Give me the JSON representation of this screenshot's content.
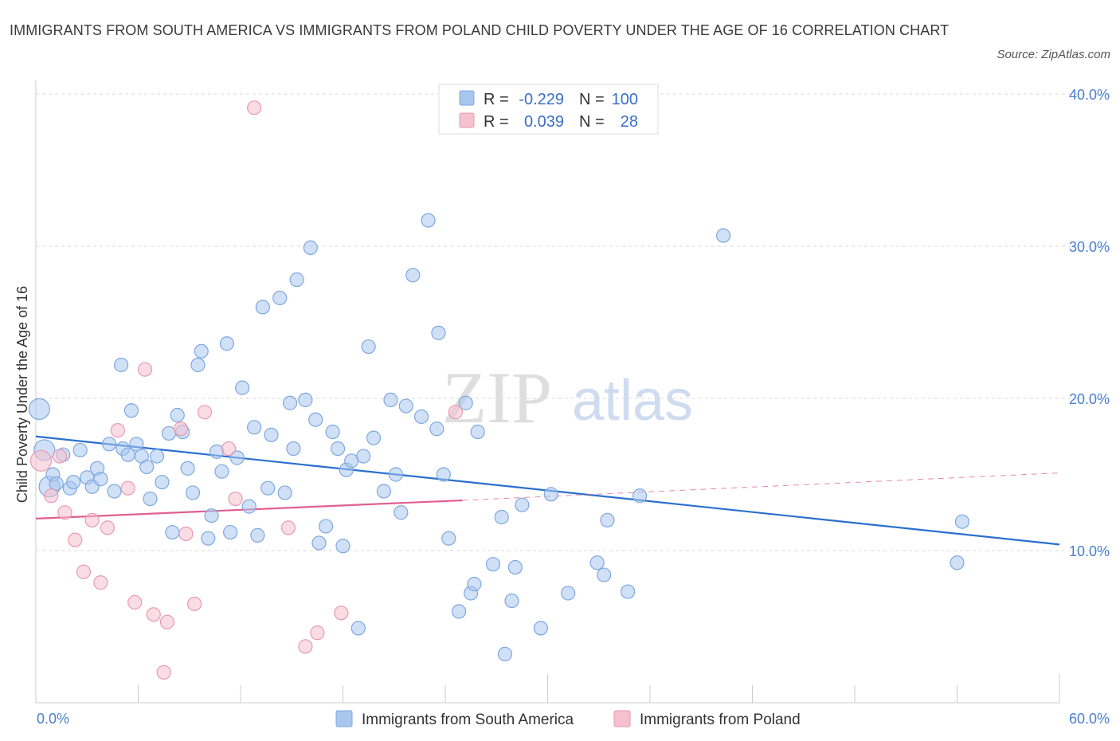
{
  "chart_data": {
    "type": "scatter",
    "title": "IMMIGRANTS FROM SOUTH AMERICA VS IMMIGRANTS FROM POLAND CHILD POVERTY UNDER THE AGE OF 16 CORRELATION CHART",
    "source": "Source: ZipAtlas.com",
    "ylabel": "Child Poverty Under the Age of 16",
    "xlim": [
      0,
      60
    ],
    "ylim": [
      1,
      41
    ],
    "x_tick_labels": [
      "0.0%",
      "60.0%"
    ],
    "y_ticks": [
      10,
      20,
      30,
      40
    ],
    "y_tick_labels": [
      "10.0%",
      "20.0%",
      "30.0%",
      "40.0%"
    ],
    "grid": true,
    "legend_position": "top-center",
    "watermark": {
      "zip": "ZIP",
      "atlas": "atlas"
    },
    "legend": {
      "r_label": "R =",
      "n_label": "N =",
      "rows": [
        {
          "r": "-0.229",
          "n": "100"
        },
        {
          "r": "0.039",
          "n": "28"
        }
      ]
    },
    "series": [
      {
        "name": "Immigrants from South America",
        "color": "#a9c6ef",
        "stroke": "#7ea8e0",
        "line_color": "#2a6fcf",
        "trend": {
          "x0": 0,
          "y0": 17.5,
          "x1": 60,
          "y1": 10.4
        },
        "points": [
          [
            0.2,
            19.3
          ],
          [
            0.5,
            16.6
          ],
          [
            0.8,
            14.2
          ],
          [
            1.0,
            15.0
          ],
          [
            1.2,
            14.4
          ],
          [
            1.6,
            16.3
          ],
          [
            2.0,
            14.1
          ],
          [
            2.2,
            14.5
          ],
          [
            2.6,
            16.6
          ],
          [
            3.0,
            14.8
          ],
          [
            3.3,
            14.2
          ],
          [
            3.6,
            15.4
          ],
          [
            3.8,
            14.7
          ],
          [
            4.3,
            17.0
          ],
          [
            4.6,
            13.9
          ],
          [
            5.0,
            22.2
          ],
          [
            5.1,
            16.7
          ],
          [
            5.4,
            16.3
          ],
          [
            5.6,
            19.2
          ],
          [
            5.9,
            17.0
          ],
          [
            6.2,
            16.2
          ],
          [
            6.5,
            15.5
          ],
          [
            6.7,
            13.4
          ],
          [
            7.1,
            16.2
          ],
          [
            7.4,
            14.5
          ],
          [
            7.8,
            17.7
          ],
          [
            8.0,
            11.2
          ],
          [
            8.3,
            18.9
          ],
          [
            8.6,
            17.8
          ],
          [
            8.9,
            15.4
          ],
          [
            9.2,
            13.8
          ],
          [
            9.5,
            22.2
          ],
          [
            9.7,
            23.1
          ],
          [
            10.1,
            10.8
          ],
          [
            10.3,
            12.3
          ],
          [
            10.6,
            16.5
          ],
          [
            10.9,
            15.2
          ],
          [
            11.2,
            23.6
          ],
          [
            11.4,
            11.2
          ],
          [
            11.8,
            16.1
          ],
          [
            12.1,
            20.7
          ],
          [
            12.5,
            12.9
          ],
          [
            12.8,
            18.1
          ],
          [
            13.0,
            11.0
          ],
          [
            13.3,
            26.0
          ],
          [
            13.6,
            14.1
          ],
          [
            13.8,
            17.6
          ],
          [
            14.3,
            26.6
          ],
          [
            14.6,
            13.8
          ],
          [
            14.9,
            19.7
          ],
          [
            15.1,
            16.7
          ],
          [
            15.3,
            27.8
          ],
          [
            15.8,
            19.9
          ],
          [
            16.1,
            29.9
          ],
          [
            16.4,
            18.6
          ],
          [
            16.6,
            10.5
          ],
          [
            17.0,
            11.6
          ],
          [
            17.4,
            17.8
          ],
          [
            17.7,
            16.7
          ],
          [
            18.0,
            10.3
          ],
          [
            18.2,
            15.3
          ],
          [
            18.5,
            15.9
          ],
          [
            18.9,
            4.9
          ],
          [
            19.2,
            16.2
          ],
          [
            19.5,
            23.4
          ],
          [
            19.8,
            17.4
          ],
          [
            20.4,
            13.9
          ],
          [
            20.8,
            19.9
          ],
          [
            21.1,
            15.0
          ],
          [
            21.4,
            12.5
          ],
          [
            21.7,
            19.5
          ],
          [
            22.1,
            28.1
          ],
          [
            22.6,
            18.8
          ],
          [
            23.0,
            31.7
          ],
          [
            23.5,
            18.0
          ],
          [
            23.6,
            24.3
          ],
          [
            23.9,
            15.0
          ],
          [
            24.2,
            10.8
          ],
          [
            24.8,
            6.0
          ],
          [
            25.2,
            19.7
          ],
          [
            25.5,
            7.2
          ],
          [
            25.7,
            7.8
          ],
          [
            25.9,
            17.8
          ],
          [
            26.8,
            9.1
          ],
          [
            27.3,
            12.2
          ],
          [
            27.5,
            3.2
          ],
          [
            27.9,
            6.7
          ],
          [
            28.1,
            8.9
          ],
          [
            28.5,
            13.0
          ],
          [
            29.6,
            4.9
          ],
          [
            30.2,
            13.7
          ],
          [
            31.2,
            7.2
          ],
          [
            32.9,
            9.2
          ],
          [
            33.3,
            8.4
          ],
          [
            33.5,
            12.0
          ],
          [
            34.7,
            7.3
          ],
          [
            35.4,
            13.6
          ],
          [
            40.3,
            30.7
          ],
          [
            54.0,
            9.2
          ],
          [
            54.3,
            11.9
          ]
        ],
        "large_points": [
          [
            0.2,
            19.3
          ],
          [
            0.5,
            16.6
          ],
          [
            0.8,
            14.2
          ]
        ]
      },
      {
        "name": "Immigrants from Poland",
        "color": "#f5c0d0",
        "stroke": "#e89ab2",
        "line_color": "#e06090",
        "trend": {
          "x0": 0,
          "y0": 12.1,
          "x1": 25,
          "y1": 13.3
        },
        "trend_dashed": {
          "x0": 25,
          "y0": 13.3,
          "x1": 60,
          "y1": 15.1
        },
        "points": [
          [
            0.3,
            15.9
          ],
          [
            0.9,
            13.6
          ],
          [
            1.4,
            16.2
          ],
          [
            1.7,
            12.5
          ],
          [
            2.3,
            10.7
          ],
          [
            2.8,
            8.6
          ],
          [
            3.3,
            12.0
          ],
          [
            3.8,
            7.9
          ],
          [
            4.2,
            11.5
          ],
          [
            4.8,
            17.9
          ],
          [
            5.4,
            14.1
          ],
          [
            5.8,
            6.6
          ],
          [
            6.4,
            21.9
          ],
          [
            6.9,
            5.8
          ],
          [
            7.5,
            2.0
          ],
          [
            7.7,
            5.3
          ],
          [
            8.5,
            18.0
          ],
          [
            8.8,
            11.1
          ],
          [
            9.3,
            6.5
          ],
          [
            9.9,
            19.1
          ],
          [
            11.3,
            16.7
          ],
          [
            11.7,
            13.4
          ],
          [
            12.8,
            39.1
          ],
          [
            14.8,
            11.5
          ],
          [
            15.8,
            3.7
          ],
          [
            16.5,
            4.6
          ],
          [
            17.9,
            5.9
          ],
          [
            24.6,
            19.1
          ]
        ],
        "large_points": [
          [
            0.3,
            15.9
          ]
        ]
      }
    ]
  }
}
